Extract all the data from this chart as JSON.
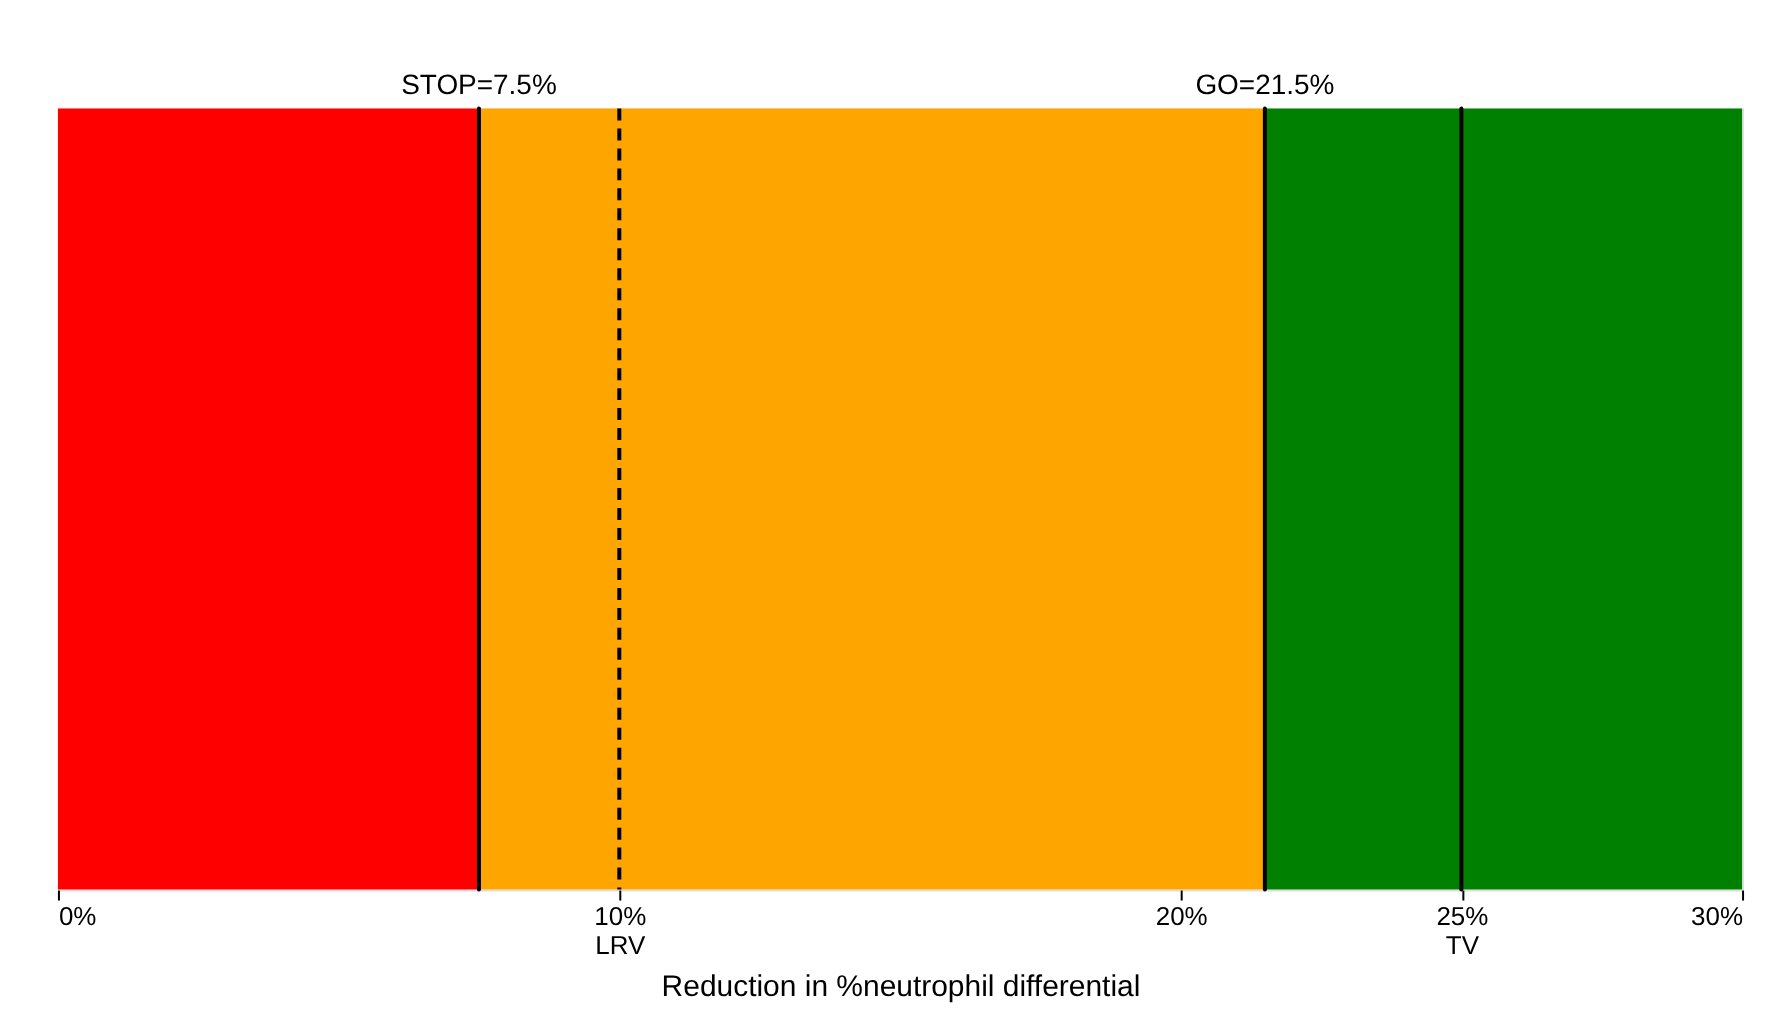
{
  "chart_data": {
    "type": "bar",
    "orientation": "horizontal",
    "stacked": true,
    "xlabel": "Reduction in %neutrophil differential",
    "categories": [
      null
    ],
    "series": [
      {
        "color": "#ff0000",
        "values": [
          7.5
        ]
      },
      {
        "color": "#ffa500",
        "values": [
          14
        ]
      },
      {
        "color": "#008000",
        "values": [
          8.5
        ]
      }
    ],
    "xlim": [
      0,
      30
    ],
    "xticks": [
      {
        "value": 0,
        "label": "0%"
      },
      {
        "value": 10,
        "label": "10%\nLRV"
      },
      {
        "value": 20,
        "label": "20%"
      },
      {
        "value": 25,
        "label": "25%\nTV"
      },
      {
        "value": 30,
        "label": "30%"
      }
    ],
    "ref_lines": [
      {
        "axis": "x",
        "value": 7.5,
        "label": "STOP=7.5%",
        "line_style": "solid",
        "color": "#000000"
      },
      {
        "axis": "x",
        "value": 10,
        "line_style": "dashed",
        "color": "#000000"
      },
      {
        "axis": "x",
        "value": 21.5,
        "label": "GO=21.5%",
        "line_style": "solid",
        "color": "#000000"
      },
      {
        "axis": "x",
        "value": 25,
        "line_style": "solid",
        "color": "#000000"
      }
    ],
    "tick_labels": "x",
    "grid": false
  }
}
